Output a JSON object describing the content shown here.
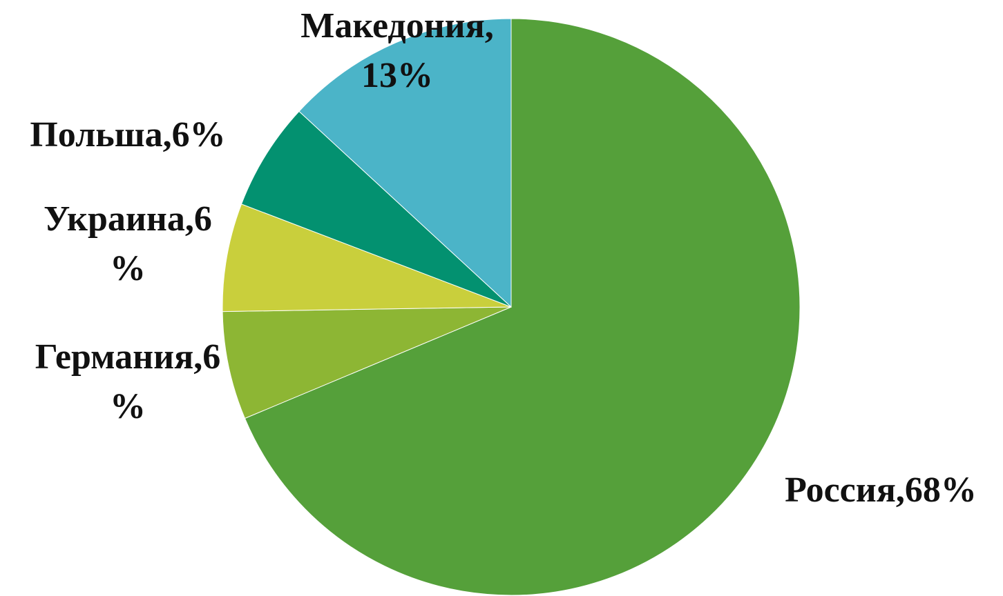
{
  "chart_data": {
    "type": "pie",
    "categories": [
      "Россия",
      "Германия",
      "Украина",
      "Польша",
      "Македония"
    ],
    "values": [
      68,
      6,
      6,
      6,
      13
    ],
    "value_labels": [
      [
        "Россия,68%"
      ],
      [
        "Германия,6",
        "%"
      ],
      [
        "Украина,6",
        "%"
      ],
      [
        "Польша,6%"
      ],
      [
        "Македония,",
        "13%"
      ]
    ],
    "colors": [
      "#55a03a",
      "#8db634",
      "#c9cf3c",
      "#039170",
      "#4bb4c8"
    ]
  }
}
